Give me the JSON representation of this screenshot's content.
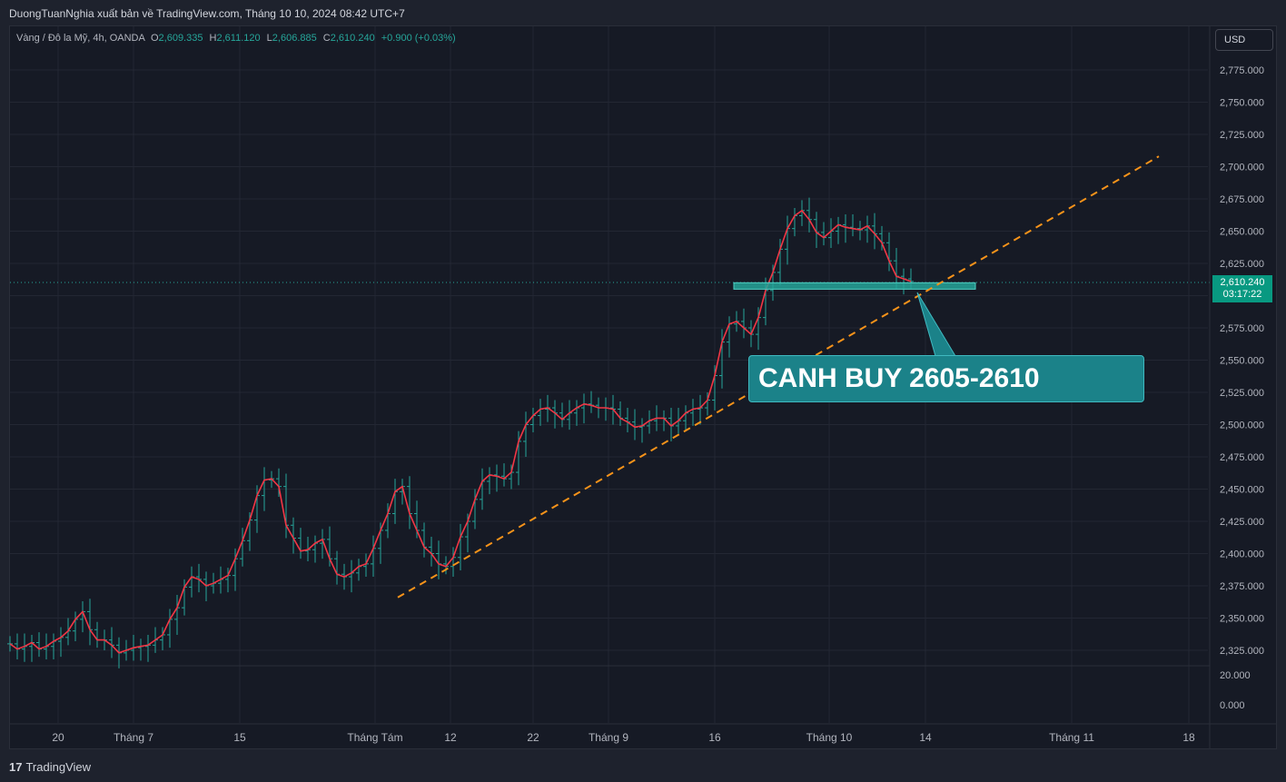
{
  "header": {
    "publish_text": "DuongTuanNghia xuất bản về TradingView.com, Tháng 10 10, 2024 08:42 UTC+7"
  },
  "legend": {
    "symbol": "Vàng / Đô la Mỹ, 4h, OANDA",
    "o_label": "O",
    "o_value": "2,609.335",
    "h_label": "H",
    "h_value": "2,611.120",
    "l_label": "L",
    "l_value": "2,606.885",
    "c_label": "C",
    "c_value": "2,610.240",
    "change": "+0.900 (+0.03%)"
  },
  "currency_button": "USD",
  "last_price": {
    "price": "2,610.240",
    "countdown": "03:17:22"
  },
  "annotation": {
    "text": "CANH BUY 2605-2610"
  },
  "footer": {
    "logo_glyph": "17",
    "logo_text": "TradingView"
  },
  "colors": {
    "background": "#161a25",
    "up": "#26a69a",
    "ma_line": "#f23645",
    "trendline": "#f7931a",
    "zone": "#26a69a",
    "callout": "#1b8289"
  },
  "chart_data": {
    "type": "line",
    "title": "",
    "symbol": "XAUUSD",
    "timeframe": "4h",
    "y_axis": {
      "min": 2315,
      "max": 2790,
      "ticks": [
        2325,
        2350,
        2375,
        2400,
        2425,
        2450,
        2475,
        2500,
        2525,
        2550,
        2575,
        2600,
        2625,
        2650,
        2675,
        2700,
        2725,
        2750,
        2775
      ],
      "tick_labels": [
        "2,325.000",
        "2,350.000",
        "2,375.000",
        "2,400.000",
        "2,425.000",
        "2,450.000",
        "2,475.000",
        "2,500.000",
        "2,525.000",
        "2,550.000",
        "2,575.000",
        "2,600.000",
        "2,625.000",
        "2,650.000",
        "2,675.000",
        "2,700.000",
        "2,725.000",
        "2,750.000",
        "2,775.000"
      ]
    },
    "volume_axis": {
      "tick_labels": [
        "20.000",
        "0.000"
      ]
    },
    "x_axis": {
      "tick_labels": [
        "20",
        "Tháng 7",
        "15",
        "Tháng Tám",
        "12",
        "22",
        "Tháng 9",
        "16",
        "Tháng 10",
        "14",
        "Tháng 11",
        "18"
      ]
    },
    "grid": true,
    "series": [
      {
        "x": [
          0,
          8,
          16,
          24,
          32,
          40,
          48,
          56,
          64,
          72,
          80,
          88,
          96,
          104,
          112,
          120,
          128,
          136,
          144,
          152,
          160,
          168,
          176,
          184,
          192,
          200,
          208,
          216,
          224,
          232,
          240,
          248,
          256,
          264,
          272,
          280,
          288,
          296,
          304,
          312,
          320,
          328,
          336,
          344,
          352,
          360,
          368,
          376,
          384,
          392,
          400,
          408,
          416,
          424,
          432,
          440,
          448,
          456,
          464,
          472,
          480,
          488,
          496,
          504,
          512,
          520,
          528,
          536,
          544,
          552,
          560,
          568,
          576,
          584,
          592,
          600,
          608,
          616,
          624,
          632,
          640,
          648,
          656,
          664,
          672,
          680,
          688,
          696,
          704,
          712,
          720,
          728,
          736,
          744,
          752,
          760,
          768,
          776,
          784,
          792,
          800,
          808,
          816,
          824,
          832,
          840,
          848,
          856,
          864,
          872,
          880,
          888,
          896,
          904,
          912,
          920,
          928,
          936,
          944,
          952,
          960,
          968,
          976,
          984,
          992
        ],
        "values": [
          2330,
          2326,
          2328,
          2331,
          2326,
          2328,
          2332,
          2335,
          2340,
          2349,
          2355,
          2341,
          2333,
          2333,
          2329,
          2323,
          2325,
          2327,
          2328,
          2329,
          2333,
          2337,
          2349,
          2358,
          2374,
          2382,
          2380,
          2375,
          2377,
          2380,
          2383,
          2396,
          2410,
          2426,
          2445,
          2457,
          2458,
          2452,
          2422,
          2412,
          2402,
          2403,
          2408,
          2411,
          2396,
          2384,
          2382,
          2385,
          2390,
          2392,
          2404,
          2418,
          2431,
          2448,
          2452,
          2431,
          2418,
          2405,
          2400,
          2392,
          2390,
          2397,
          2413,
          2425,
          2442,
          2456,
          2461,
          2460,
          2458,
          2463,
          2487,
          2500,
          2507,
          2512,
          2513,
          2509,
          2504,
          2509,
          2513,
          2516,
          2515,
          2513,
          2513,
          2512,
          2505,
          2502,
          2498,
          2499,
          2503,
          2505,
          2505,
          2499,
          2503,
          2509,
          2512,
          2513,
          2519,
          2538,
          2564,
          2578,
          2580,
          2575,
          2570,
          2583,
          2604,
          2618,
          2636,
          2652,
          2662,
          2666,
          2659,
          2649,
          2645,
          2650,
          2655,
          2653,
          2652,
          2651,
          2654,
          2648,
          2641,
          2627,
          2615,
          2613,
          2611
        ]
      }
    ],
    "trendline": {
      "from": [
        2366,
        "Tháng Tám"
      ],
      "to": [
        2708,
        "Tháng 11"
      ]
    },
    "support_zone": [
      2605,
      2610
    ],
    "last_price": 2610.24
  }
}
